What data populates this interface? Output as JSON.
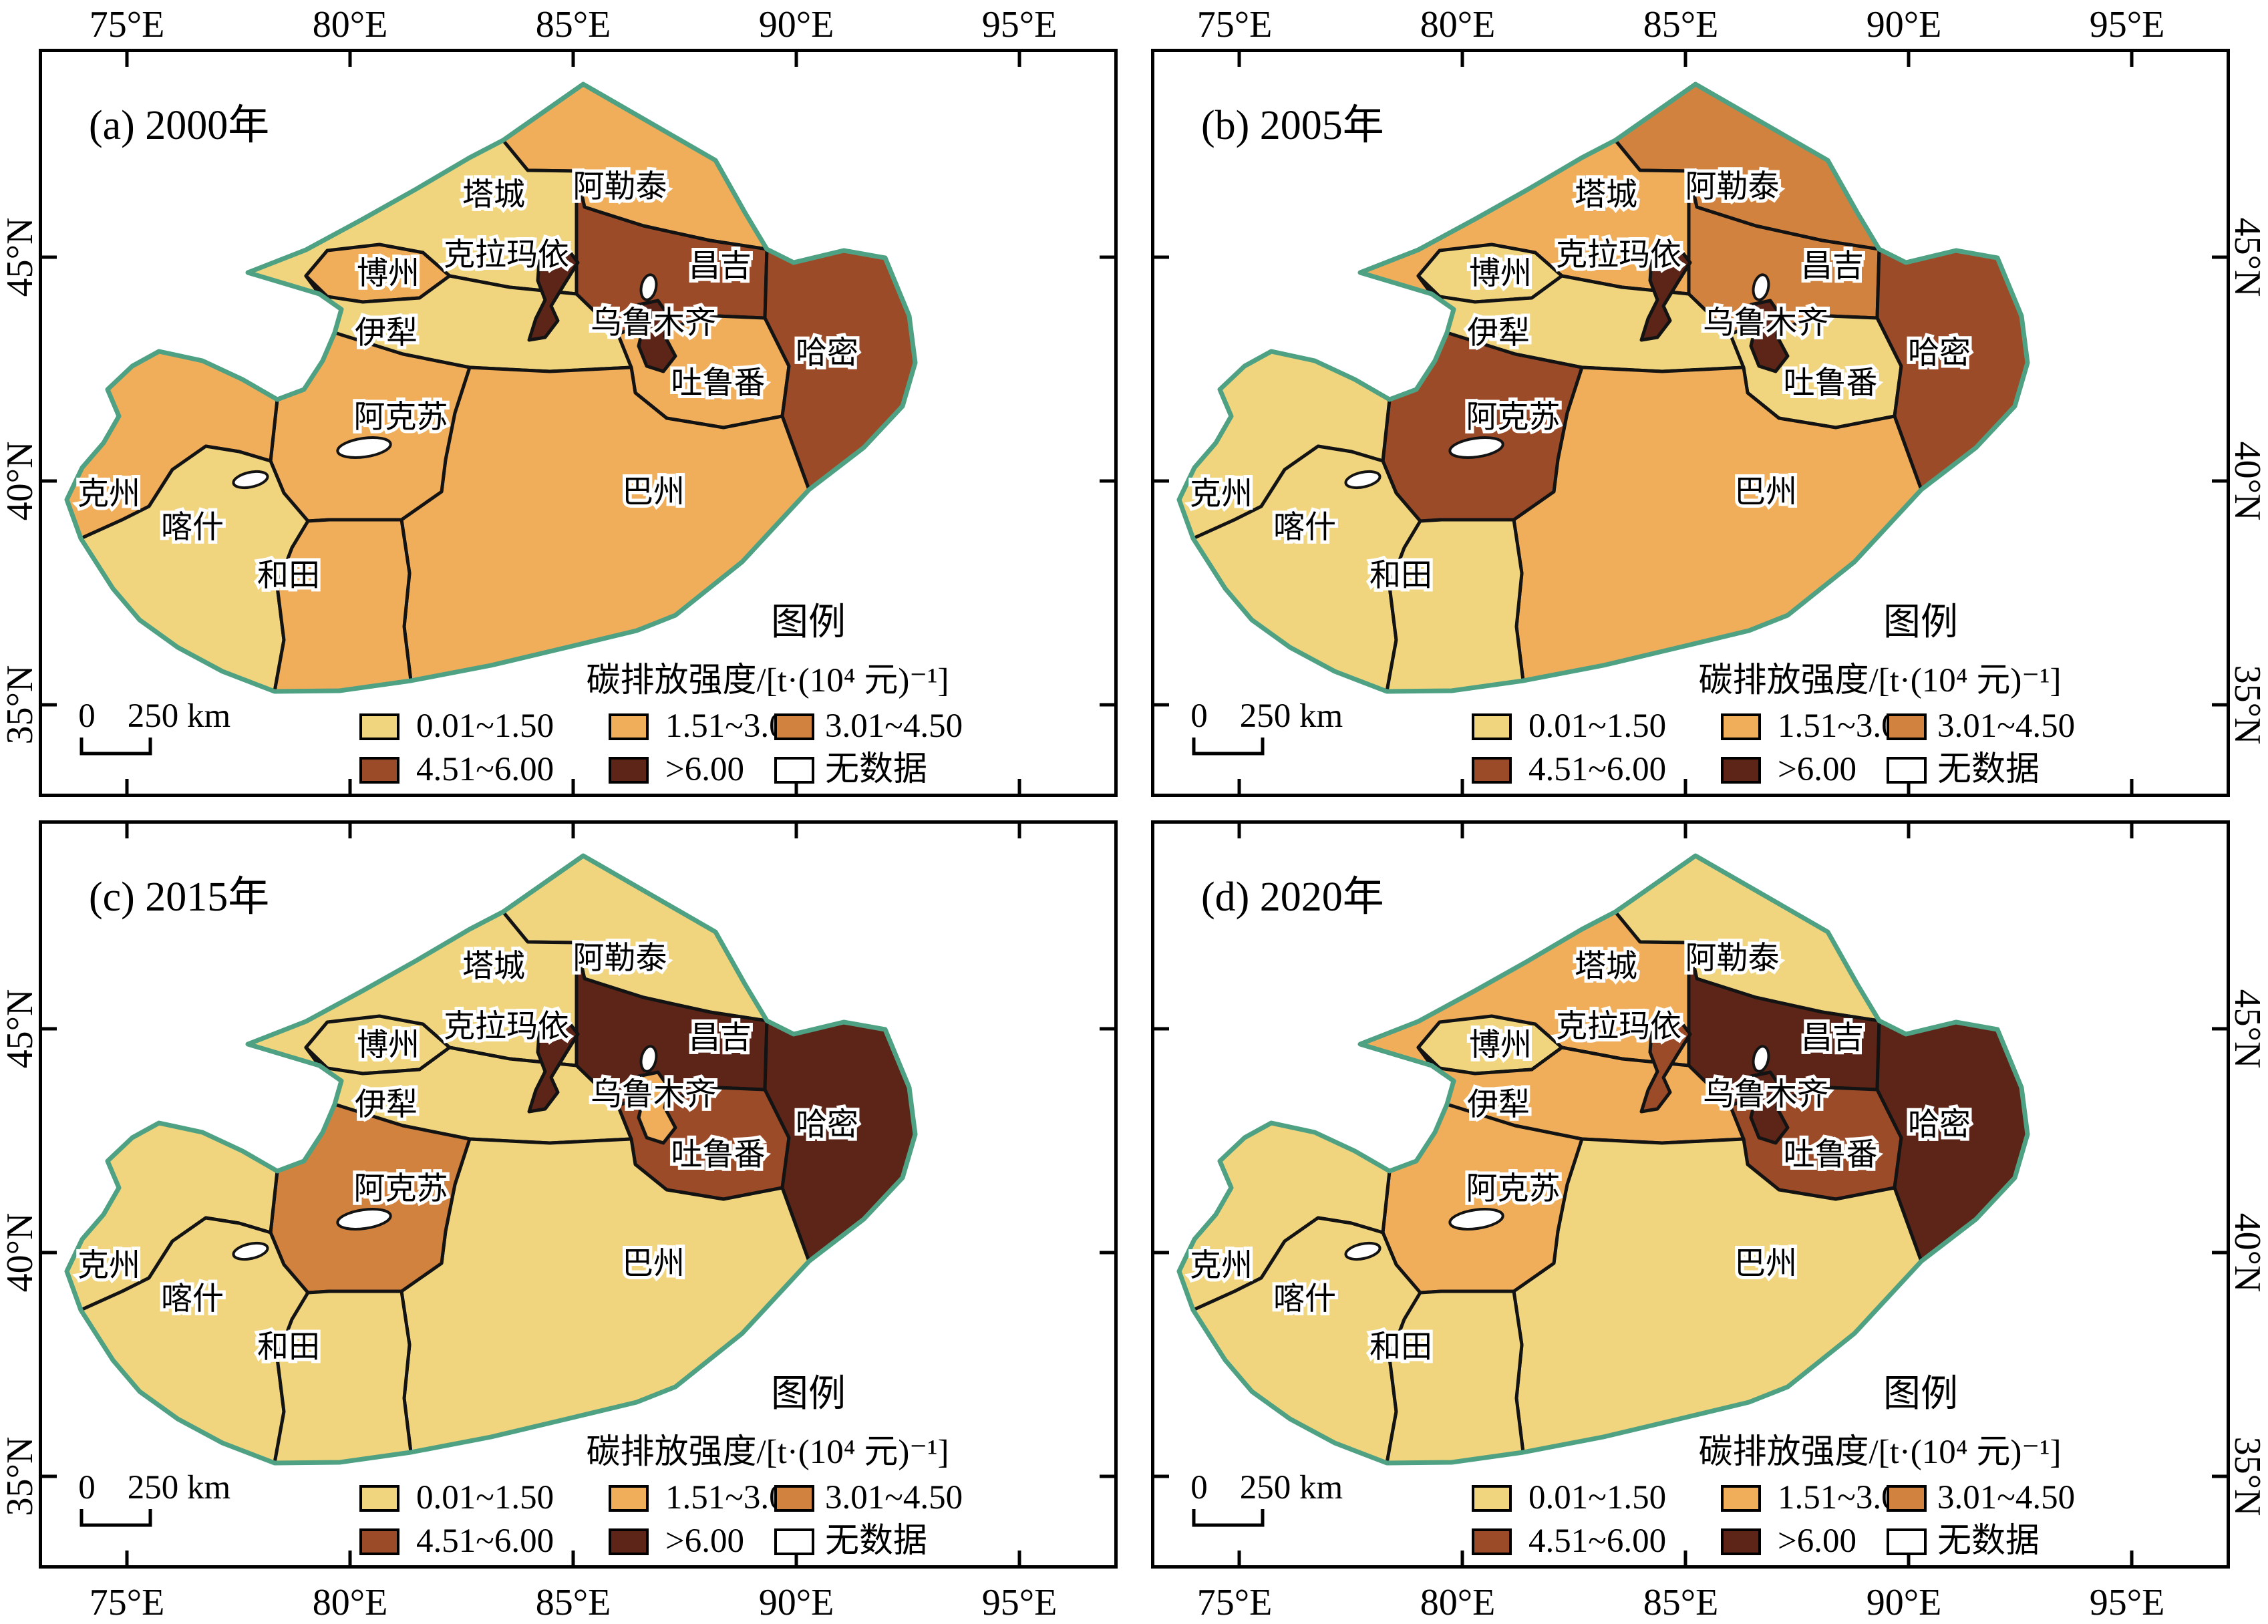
{
  "figure": {
    "description": "Four-panel choropleth maps of Xinjiang prefecture-level carbon emission intensity"
  },
  "axes": {
    "lon_labels": [
      "75°E",
      "80°E",
      "85°E",
      "90°E",
      "95°E"
    ],
    "lat_labels": [
      "45°N",
      "40°N",
      "35°N"
    ]
  },
  "legend": {
    "heading": "图例",
    "title": "碳排放强度/[t·(10⁴ 元)⁻¹]",
    "classes": [
      {
        "label": "0.01~1.50",
        "color": "#F0D57E"
      },
      {
        "label": "1.51~3.00",
        "color": "#F0AE5B"
      },
      {
        "label": "3.01~4.50",
        "color": "#D2823F"
      },
      {
        "label": "4.51~6.00",
        "color": "#9C4B28"
      },
      {
        "label": ">6.00",
        "color": "#5C2518"
      },
      {
        "label": "无数据",
        "color": "#FFFFFF"
      }
    ]
  },
  "scale_bar": {
    "zero": "0",
    "distance": "250 km"
  },
  "colors": {
    "outer_border": "#4FA183",
    "inner_border": "#131313",
    "frame": "#000000",
    "background": "#FFFFFF",
    "nodata": "#FFFFFF",
    "label_halo": "#FFFFFF"
  },
  "regions": [
    {
      "id": "altay",
      "label": "阿勒泰"
    },
    {
      "id": "tacheng",
      "label": "塔城"
    },
    {
      "id": "karamay",
      "label": "克拉玛依"
    },
    {
      "id": "bortala",
      "label": "博州"
    },
    {
      "id": "yili",
      "label": "伊犁"
    },
    {
      "id": "changji",
      "label": "昌吉"
    },
    {
      "id": "urumqi",
      "label": "乌鲁木齐"
    },
    {
      "id": "turpan",
      "label": "吐鲁番"
    },
    {
      "id": "hami",
      "label": "哈密"
    },
    {
      "id": "bazhou",
      "label": "巴州"
    },
    {
      "id": "aksu",
      "label": "阿克苏"
    },
    {
      "id": "kizilsu",
      "label": "克州"
    },
    {
      "id": "kashgar",
      "label": "喀什"
    },
    {
      "id": "hotan",
      "label": "和田"
    }
  ],
  "panels": [
    {
      "id": "a",
      "title": "(a) 2000年",
      "year": "2000",
      "classes": {
        "altay": 2,
        "tacheng": 1,
        "karamay": 5,
        "bortala": 2,
        "yili": 1,
        "changji": 4,
        "urumqi": 5,
        "turpan": 2,
        "hami": 4,
        "bazhou": 2,
        "aksu": 2,
        "kizilsu": 2,
        "kashgar": 1,
        "hotan": 2
      }
    },
    {
      "id": "b",
      "title": "(b) 2005年",
      "year": "2005",
      "classes": {
        "altay": 3,
        "tacheng": 2,
        "karamay": 5,
        "bortala": 1,
        "yili": 1,
        "changji": 3,
        "urumqi": 5,
        "turpan": 1,
        "hami": 4,
        "bazhou": 2,
        "aksu": 4,
        "kizilsu": 1,
        "kashgar": 1,
        "hotan": 1
      }
    },
    {
      "id": "c",
      "title": "(c) 2015年",
      "year": "2015",
      "classes": {
        "altay": 1,
        "tacheng": 1,
        "karamay": 5,
        "bortala": 1,
        "yili": 1,
        "changji": 5,
        "urumqi": 2,
        "turpan": 4,
        "hami": 5,
        "bazhou": 1,
        "aksu": 3,
        "kizilsu": 1,
        "kashgar": 1,
        "hotan": 1
      }
    },
    {
      "id": "d",
      "title": "(d) 2020年",
      "year": "2020",
      "classes": {
        "altay": 1,
        "tacheng": 2,
        "karamay": 4,
        "bortala": 1,
        "yili": 2,
        "changji": 5,
        "urumqi": 5,
        "turpan": 4,
        "hami": 5,
        "bazhou": 1,
        "aksu": 2,
        "kizilsu": 1,
        "kashgar": 1,
        "hotan": 1
      }
    }
  ]
}
